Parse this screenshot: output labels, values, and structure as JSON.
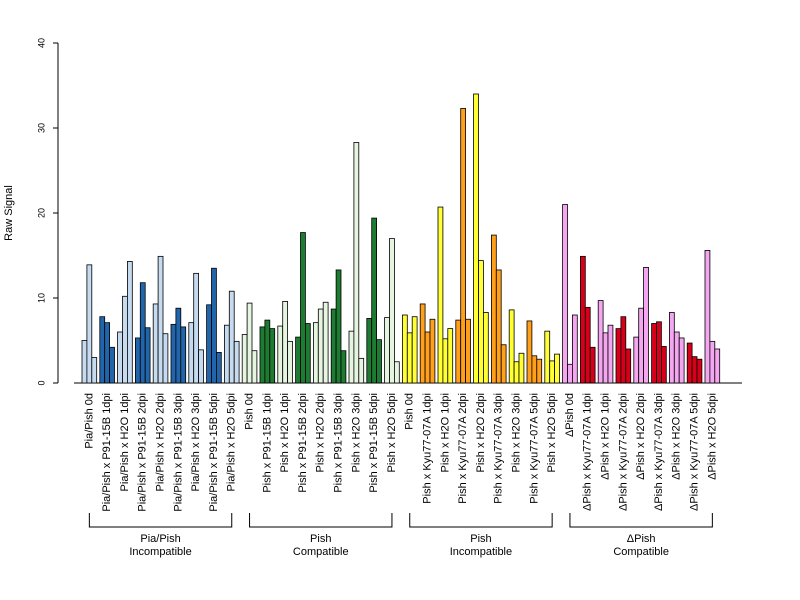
{
  "chart_data": {
    "type": "bar",
    "ylabel": "Raw Signal",
    "xlabel": "",
    "ylim": [
      0,
      40
    ],
    "yticks": [
      0,
      10,
      20,
      30,
      40
    ],
    "grid": false,
    "legend": "none",
    "categories": [
      "Pia/Pish 0d",
      "Pia/Pish x P91-15B 1dpi",
      "Pia/Pish x H2O 1dpi",
      "Pia/Pish x P91-15B 2dpi",
      "Pia/Pish x H2O 2dpi",
      "Pia/Pish x P91-15B 3dpi",
      "Pia/Pish x H2O 3dpi",
      "Pia/Pish x P91-15B 5dpi",
      "Pia/Pish x H2O 5dpi",
      "Pish 0d",
      "Pish x P91-15B 1dpi",
      "Pish x H2O 1dpi",
      "Pish x P91-15B 2dpi",
      "Pish x H2O 2dpi",
      "Pish x P91-15B 3dpi",
      "Pish x H2O 3dpi",
      "Pish x P91-15B 5dpi",
      "Pish x H2O 5dpi",
      "Pish 0d",
      "Pish x Kyu77-07A 1dpi",
      "Pish x H2O 1dpi",
      "Pish x Kyu77-07A 2dpi",
      "Pish x H2O 2dpi",
      "Pish x Kyu77-07A 3dpi",
      "Pish x H2O 3dpi",
      "Pish x Kyu77-07A 5dpi",
      "Pish x H2O 5dpi",
      "ΔPish 0d",
      "ΔPish x Kyu77-07A 1dpi",
      "ΔPish x H2O 1dpi",
      "ΔPish x Kyu77-07A 2dpi",
      "ΔPish x H2O 2dpi",
      "ΔPish x Kyu77-07A 3dpi",
      "ΔPish x H2O 3dpi",
      "ΔPish x Kyu77-07A 5dpi",
      "ΔPish x H2O 5dpi"
    ],
    "values": [
      [
        5,
        13.9,
        3
      ],
      [
        7.8,
        7.1,
        4.2
      ],
      [
        6,
        10.2,
        14.3
      ],
      [
        5.3,
        11.8,
        6.5
      ],
      [
        9.3,
        14.9,
        5.8
      ],
      [
        6.9,
        8.8,
        6.6
      ],
      [
        7.1,
        12.9,
        3.9
      ],
      [
        9.2,
        13.5,
        3.6
      ],
      [
        6.8,
        10.8,
        4.9
      ],
      [
        5.7,
        9.4,
        3.8
      ],
      [
        6.6,
        7.4,
        6.4
      ],
      [
        6.7,
        9.6,
        4.9
      ],
      [
        5.4,
        17.7,
        7
      ],
      [
        7.1,
        8.7,
        9.5
      ],
      [
        8.7,
        13.3,
        3.8
      ],
      [
        6.1,
        28.3,
        2.9
      ],
      [
        7.6,
        19.4,
        5.1
      ],
      [
        7.7,
        17,
        2.5
      ],
      [
        8,
        5.9,
        7.8
      ],
      [
        9.3,
        6,
        7.5
      ],
      [
        20.7,
        5.2,
        6.4
      ],
      [
        7.4,
        32.3,
        7.5
      ],
      [
        34,
        14.4,
        8.3
      ],
      [
        17.4,
        13.3,
        4.5
      ],
      [
        8.6,
        2.5,
        3.5
      ],
      [
        7.3,
        3.2,
        2.8
      ],
      [
        6.1,
        2.6,
        3.4
      ],
      [
        21,
        2.2,
        8
      ],
      [
        14.9,
        8.9,
        4.2
      ],
      [
        9.7,
        5.9,
        6.8
      ],
      [
        6.4,
        7.8,
        4
      ],
      [
        5.4,
        8.8,
        13.6
      ],
      [
        7,
        7.2,
        4.3
      ],
      [
        8.3,
        6,
        5.3
      ],
      [
        4.7,
        3.1,
        2.8
      ],
      [
        15.6,
        4.9,
        4
      ]
    ],
    "groups": [
      {
        "label_line1": "Pia/Pish",
        "label_line2": "Incompatible",
        "start": 0,
        "end": 8
      },
      {
        "label_line1": "Pish",
        "label_line2": "Compatible",
        "start": 9,
        "end": 17
      },
      {
        "label_line1": "Pish",
        "label_line2": "Incompatible",
        "start": 18,
        "end": 26
      },
      {
        "label_line1": "ΔPish",
        "label_line2": "Compatible",
        "start": 27,
        "end": 35
      }
    ],
    "colors": {
      "light_blue": "#c6dbef",
      "dark_blue": "#2166ac",
      "light_green": "#e5f5e0",
      "dark_green": "#1e7b32",
      "yellow": "#ffff33",
      "orange": "#ff9f1a",
      "pink": "#f4a6f0",
      "red": "#d7001a",
      "outline": "#000000"
    },
    "category_colors": [
      "light_blue",
      "dark_blue",
      "light_blue",
      "dark_blue",
      "light_blue",
      "dark_blue",
      "light_blue",
      "dark_blue",
      "light_blue",
      "light_green",
      "dark_green",
      "light_green",
      "dark_green",
      "light_green",
      "dark_green",
      "light_green",
      "dark_green",
      "light_green",
      "yellow",
      "orange",
      "yellow",
      "orange",
      "yellow",
      "orange",
      "yellow",
      "orange",
      "yellow",
      "pink",
      "red",
      "pink",
      "red",
      "pink",
      "red",
      "pink",
      "red",
      "pink"
    ]
  }
}
